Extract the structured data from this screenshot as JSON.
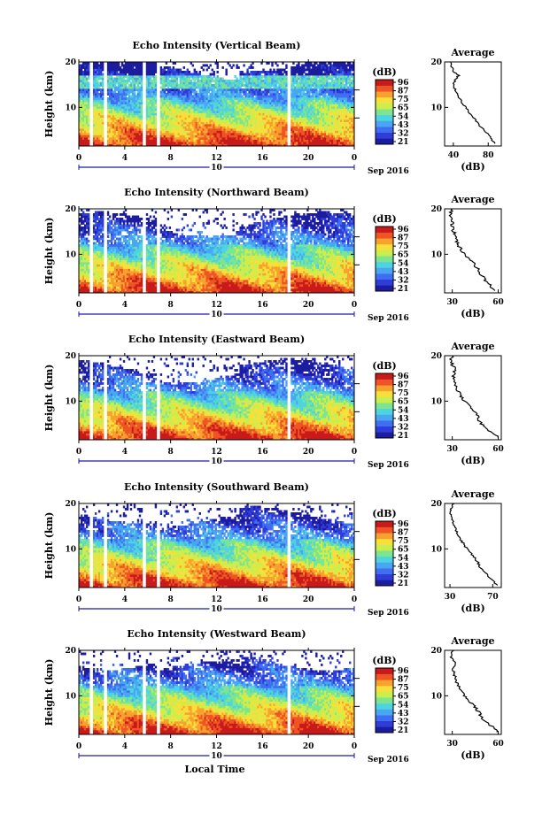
{
  "figure": {
    "x_axis_label": "Local Time",
    "date_label": "Sep 2016",
    "date_day": "10",
    "average_title": "Average",
    "colorbar_unit": "(dB)",
    "avg_xlabel": "(dB)"
  },
  "colors": {
    "colormap": [
      "#1c1ca0",
      "#2f3cd8",
      "#3f6ff0",
      "#49a6f2",
      "#4ed4e0",
      "#7de58f",
      "#c9ee4e",
      "#f7e03b",
      "#f8a12e",
      "#ee5424",
      "#c81a1a"
    ],
    "gap": "#ffffff",
    "line": "#000000"
  },
  "chart_data": [
    {
      "type": "heatmap",
      "title": "Echo Intensity (Vertical Beam)",
      "ylabel": "Height (km)",
      "xlim": [
        0,
        24
      ],
      "ylim": [
        1.5,
        20
      ],
      "x_ticks": [
        "0",
        "4",
        "8",
        "12",
        "16",
        "20",
        "0"
      ],
      "y_ticks": [
        "10",
        "20"
      ],
      "colorbar_ticks": [
        "96",
        "87",
        "75",
        "65",
        "54",
        "43",
        "32",
        "21"
      ],
      "data_gaps_hours": [
        [
          1.0,
          1.3
        ],
        [
          2.1,
          2.4
        ],
        [
          5.6,
          5.9
        ],
        [
          6.7,
          7.0
        ],
        [
          18.1,
          18.4
        ]
      ],
      "avg_profile": {
        "xlim": [
          30,
          95
        ],
        "x_ticks": [
          "40",
          "80"
        ],
        "y_ticks": [
          "10",
          "20"
        ],
        "height_km": [
          2,
          3,
          4,
          5,
          6,
          7,
          8,
          9,
          10,
          11,
          12,
          13,
          14,
          15,
          16,
          17,
          18,
          19,
          20
        ],
        "db": [
          88,
          84,
          80,
          75,
          70,
          66,
          62,
          58,
          54,
          50,
          47,
          44,
          42,
          40,
          42,
          46,
          40,
          38,
          37
        ]
      }
    },
    {
      "type": "heatmap",
      "title": "Echo Intensity (Northward Beam)",
      "ylabel": "Height (km)",
      "xlim": [
        0,
        24
      ],
      "ylim": [
        1.5,
        20
      ],
      "x_ticks": [
        "0",
        "4",
        "8",
        "12",
        "16",
        "20",
        "0"
      ],
      "y_ticks": [
        "10",
        "20"
      ],
      "colorbar_ticks": [
        "96",
        "87",
        "75",
        "65",
        "54",
        "43",
        "32",
        "21"
      ],
      "data_gaps_hours": [
        [
          1.0,
          1.3
        ],
        [
          2.1,
          2.4
        ],
        [
          5.6,
          5.9
        ],
        [
          6.7,
          7.0
        ],
        [
          18.1,
          18.4
        ]
      ],
      "avg_profile": {
        "xlim": [
          25,
          62
        ],
        "x_ticks": [
          "30",
          "60"
        ],
        "y_ticks": [
          "10",
          "20"
        ],
        "height_km": [
          2,
          3,
          4,
          5,
          6,
          7,
          8,
          9,
          10,
          11,
          12,
          13,
          14,
          15,
          16,
          17,
          18,
          19,
          20
        ],
        "db": [
          58,
          55,
          52,
          50,
          48,
          46,
          44,
          41,
          38,
          36,
          34,
          33,
          32,
          31,
          30,
          30,
          29,
          29,
          30
        ]
      }
    },
    {
      "type": "heatmap",
      "title": "Echo Intensity (Eastward Beam)",
      "ylabel": "Height (km)",
      "xlim": [
        0,
        24
      ],
      "ylim": [
        1.5,
        20
      ],
      "x_ticks": [
        "0",
        "4",
        "8",
        "12",
        "16",
        "20",
        "0"
      ],
      "y_ticks": [
        "10",
        "20"
      ],
      "colorbar_ticks": [
        "96",
        "87",
        "75",
        "65",
        "54",
        "43",
        "32",
        "21"
      ],
      "data_gaps_hours": [
        [
          1.0,
          1.3
        ],
        [
          2.1,
          2.4
        ],
        [
          5.6,
          5.9
        ],
        [
          6.7,
          7.0
        ],
        [
          18.1,
          18.4
        ]
      ],
      "avg_profile": {
        "xlim": [
          25,
          62
        ],
        "x_ticks": [
          "30",
          "60"
        ],
        "y_ticks": [
          "10",
          "20"
        ],
        "height_km": [
          2,
          3,
          4,
          5,
          6,
          7,
          8,
          9,
          10,
          11,
          12,
          13,
          14,
          15,
          16,
          17,
          18,
          19,
          20
        ],
        "db": [
          60,
          56,
          52,
          49,
          47,
          46,
          44,
          41,
          38,
          36,
          34,
          33,
          32,
          31,
          31,
          32,
          30,
          29,
          30
        ]
      }
    },
    {
      "type": "heatmap",
      "title": "Echo Intensity (Southward Beam)",
      "ylabel": "Height (km)",
      "xlim": [
        0,
        24
      ],
      "ylim": [
        1.5,
        20
      ],
      "x_ticks": [
        "0",
        "4",
        "8",
        "12",
        "16",
        "20",
        "0"
      ],
      "y_ticks": [
        "10",
        "20"
      ],
      "colorbar_ticks": [
        "96",
        "87",
        "75",
        "65",
        "54",
        "43",
        "32",
        "21"
      ],
      "data_gaps_hours": [
        [
          1.0,
          1.3
        ],
        [
          2.1,
          2.4
        ],
        [
          5.6,
          5.9
        ],
        [
          6.7,
          7.0
        ],
        [
          18.1,
          18.4
        ]
      ],
      "avg_profile": {
        "xlim": [
          25,
          78
        ],
        "x_ticks": [
          "30",
          "70"
        ],
        "y_ticks": [
          "10",
          "20"
        ],
        "height_km": [
          2,
          3,
          4,
          5,
          6,
          7,
          8,
          9,
          10,
          11,
          12,
          13,
          14,
          15,
          16,
          17,
          18,
          19,
          20
        ],
        "db": [
          74,
          70,
          66,
          62,
          58,
          56,
          53,
          50,
          46,
          43,
          40,
          38,
          36,
          34,
          33,
          32,
          30,
          31,
          34
        ]
      }
    },
    {
      "type": "heatmap",
      "title": "Echo Intensity (Westward Beam)",
      "ylabel": "Height (km)",
      "xlim": [
        0,
        24
      ],
      "ylim": [
        1.5,
        20
      ],
      "x_ticks": [
        "0",
        "4",
        "8",
        "12",
        "16",
        "20",
        "0"
      ],
      "y_ticks": [
        "10",
        "20"
      ],
      "colorbar_ticks": [
        "96",
        "87",
        "75",
        "65",
        "54",
        "43",
        "32",
        "21"
      ],
      "data_gaps_hours": [
        [
          1.0,
          1.3
        ],
        [
          2.1,
          2.4
        ],
        [
          5.6,
          5.9
        ],
        [
          6.7,
          7.0
        ],
        [
          18.1,
          18.4
        ]
      ],
      "avg_profile": {
        "xlim": [
          25,
          62
        ],
        "x_ticks": [
          "30",
          "60"
        ],
        "y_ticks": [
          "10",
          "20"
        ],
        "height_km": [
          2,
          3,
          4,
          5,
          6,
          7,
          8,
          9,
          10,
          11,
          12,
          13,
          14,
          15,
          16,
          17,
          18,
          19,
          20
        ],
        "db": [
          60,
          57,
          53,
          50,
          48,
          46,
          44,
          41,
          38,
          36,
          34,
          33,
          32,
          31,
          31,
          32,
          30,
          29,
          31
        ]
      }
    }
  ]
}
